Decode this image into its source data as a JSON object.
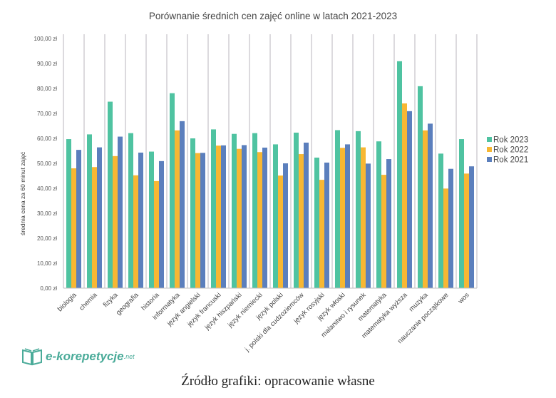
{
  "chart_data": {
    "type": "bar",
    "title": "Porównanie średnich cen zajęć online w latach 2021-2023",
    "xlabel": "",
    "ylabel": "średnia cena za 60 minut zajęć",
    "ylim": [
      0,
      100
    ],
    "yticks": [
      0,
      10,
      20,
      30,
      40,
      50,
      60,
      70,
      80,
      90,
      100
    ],
    "ytick_labels": [
      "0,00 zł",
      "10,00 zł",
      "20,00 zł",
      "30,00 zł",
      "40,00 zł",
      "50,00 zł",
      "60,00 zł",
      "70,00 zł",
      "80,00 zł",
      "90,00 zł",
      "100,00 zł"
    ],
    "grid": false,
    "legend_position": "right",
    "categories": [
      "biologia",
      "chemia",
      "fizyka",
      "geografia",
      "historia",
      "informatyka",
      "język angielski",
      "język francuski",
      "język hiszpański",
      "język niemiecki",
      "język polski",
      "j. polski dla cudzoziemców",
      "język rosyjski",
      "język włoski",
      "malarstwo i rysunek",
      "matematyka",
      "matematyka wyższa",
      "muzyka",
      "nauczanie początkowe",
      "wos"
    ],
    "series": [
      {
        "name": "Rok 2023",
        "color": "#4fc3a1",
        "values": [
          59.7,
          61.6,
          74.7,
          62.1,
          54.7,
          78.1,
          60.0,
          63.6,
          61.8,
          62.1,
          57.6,
          62.3,
          52.3,
          63.3,
          62.9,
          58.8,
          90.9,
          80.9,
          53.9,
          59.7
        ]
      },
      {
        "name": "Rok 2022",
        "color": "#f7b733",
        "values": [
          48.0,
          48.5,
          52.9,
          45.2,
          42.9,
          63.2,
          54.1,
          57.1,
          55.8,
          54.5,
          45.1,
          53.7,
          43.4,
          56.2,
          56.4,
          45.4,
          74.0,
          63.2,
          39.9,
          45.9
        ]
      },
      {
        "name": "Rok 2021",
        "color": "#5b7fbd",
        "values": [
          55.4,
          56.4,
          60.7,
          54.3,
          50.9,
          66.9,
          54.2,
          57.2,
          57.3,
          56.3,
          50.0,
          58.3,
          50.3,
          57.6,
          49.9,
          51.7,
          70.9,
          65.9,
          47.8,
          48.8
        ]
      }
    ]
  },
  "logo": {
    "main": "e-korepetycje",
    "suffix": ".net"
  },
  "source": "Źródło grafiki: opracowanie własne"
}
